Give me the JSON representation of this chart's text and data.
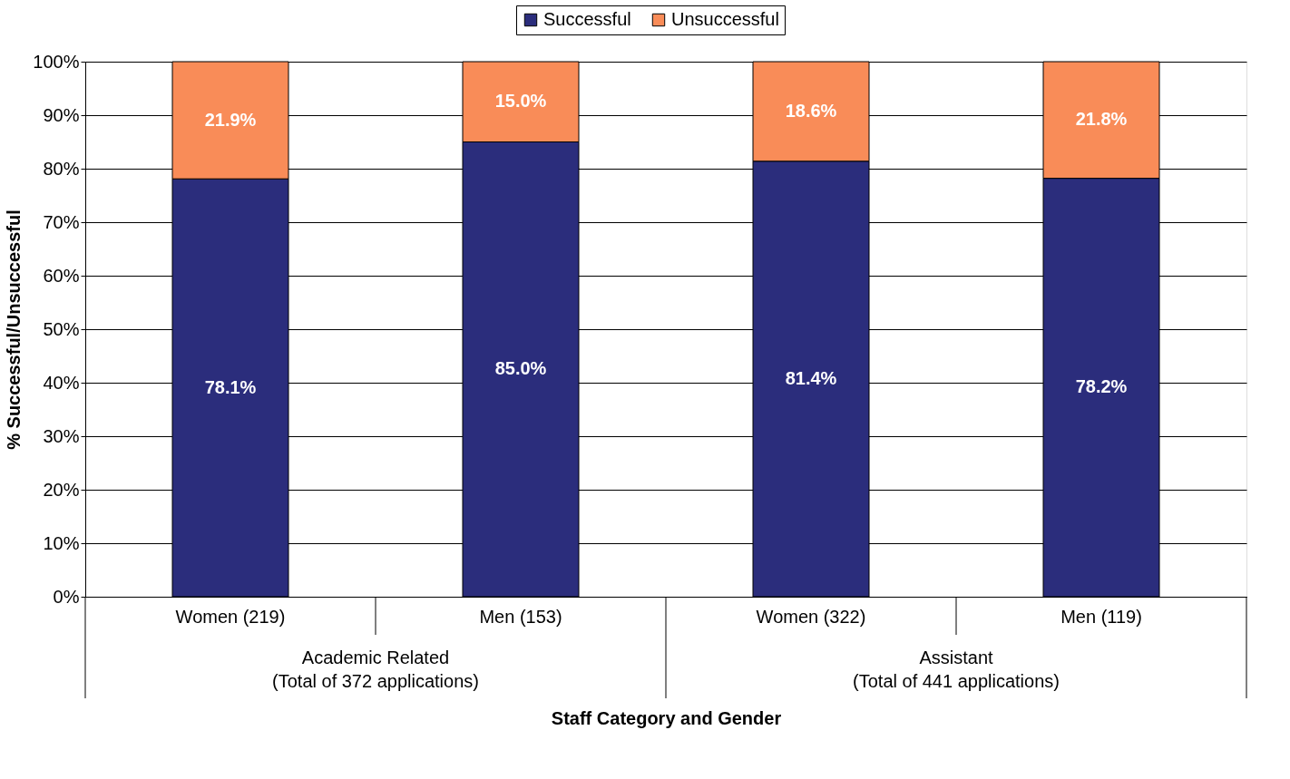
{
  "chart_data": {
    "type": "bar",
    "stacked": true,
    "categories": [
      "Women (219)",
      "Men (153)",
      "Women (322)",
      "Men (119)"
    ],
    "series": [
      {
        "name": "Successful",
        "color": "#2b2d7c",
        "values": [
          78.1,
          85.0,
          81.4,
          78.2
        ],
        "value_labels": [
          "78.1%",
          "85.0%",
          "81.4%",
          "78.2%"
        ]
      },
      {
        "name": "Unsuccessful",
        "color": "#f98c58",
        "values": [
          21.9,
          15.0,
          18.6,
          21.8
        ],
        "value_labels": [
          "21.9%",
          "15.0%",
          "18.6%",
          "21.8%"
        ]
      }
    ],
    "ylabel": "% Successful/Unsuccessful",
    "xlabel": "Staff Category and Gender",
    "annotations": [
      "Academic Related\n(Total of 372 applications)",
      "Assistant\n(Total of 441 applications)"
    ],
    "ylim": [
      0,
      100
    ],
    "yticks": [
      {
        "value": 0,
        "label": "0%"
      },
      {
        "value": 10,
        "label": "10%"
      },
      {
        "value": 20,
        "label": "20%"
      },
      {
        "value": 30,
        "label": "30%"
      },
      {
        "value": 40,
        "label": "40%"
      },
      {
        "value": 50,
        "label": "50%"
      },
      {
        "value": 60,
        "label": "60%"
      },
      {
        "value": 70,
        "label": "70%"
      },
      {
        "value": 80,
        "label": "80%"
      },
      {
        "value": 90,
        "label": "90%"
      },
      {
        "value": 100,
        "label": "100%"
      }
    ],
    "grid": "y",
    "legend": "top"
  }
}
